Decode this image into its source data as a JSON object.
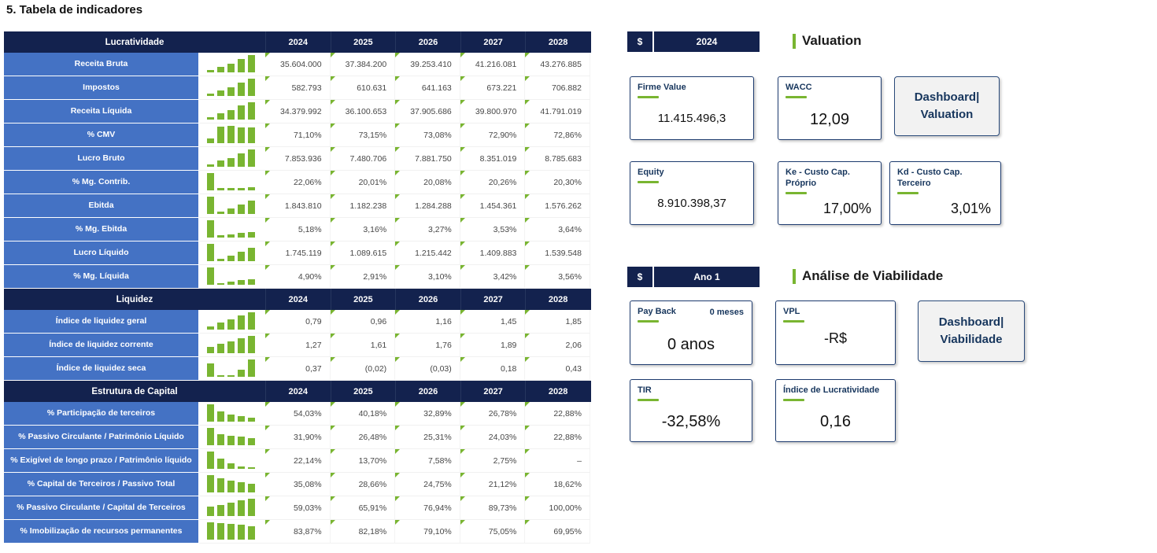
{
  "page_title": "5. Tabela de indicadores",
  "colors": {
    "accent_green": "#79b531",
    "navy": "#13224e",
    "label_blue": "#4472c4"
  },
  "table": {
    "sections": [
      {
        "title": "Lucratividade",
        "years": [
          "2024",
          "2025",
          "2026",
          "2027",
          "2028"
        ],
        "rows": [
          {
            "label": "Receita Bruta",
            "values": [
              "35.604.000",
              "37.384.200",
              "39.253.410",
              "41.216.081",
              "43.276.885"
            ],
            "spark": [
              0.12,
              0.3,
              0.5,
              0.75,
              1
            ]
          },
          {
            "label": "Impostos",
            "values": [
              "582.793",
              "610.631",
              "641.163",
              "673.221",
              "706.882"
            ],
            "spark": [
              0.12,
              0.3,
              0.5,
              0.75,
              1
            ]
          },
          {
            "label": "Receita Líquida",
            "values": [
              "34.379.992",
              "36.100.653",
              "37.905.686",
              "39.800.970",
              "41.791.019"
            ],
            "spark": [
              0.12,
              0.35,
              0.55,
              0.8,
              1
            ]
          },
          {
            "label": "% CMV",
            "values": [
              "71,10%",
              "73,15%",
              "73,08%",
              "72,90%",
              "72,86%"
            ],
            "spark": [
              0.25,
              0.95,
              1,
              0.92,
              0.9
            ]
          },
          {
            "label": "Lucro Bruto",
            "values": [
              "7.853.936",
              "7.480.706",
              "7.881.750",
              "8.351.019",
              "8.785.683"
            ],
            "spark": [
              0.15,
              0.35,
              0.5,
              0.75,
              1
            ]
          },
          {
            "label": "% Mg. Contrib.",
            "values": [
              "22,06%",
              "20,01%",
              "20,08%",
              "20,26%",
              "20,30%"
            ],
            "spark": [
              1,
              0.12,
              0.12,
              0.15,
              0.18
            ]
          },
          {
            "label": "Ebitda",
            "values": [
              "1.843.810",
              "1.182.238",
              "1.284.288",
              "1.454.361",
              "1.576.262"
            ],
            "spark": [
              1,
              0.12,
              0.3,
              0.55,
              0.75
            ]
          },
          {
            "label": "% Mg. Ebitda",
            "values": [
              "5,18%",
              "3,16%",
              "3,27%",
              "3,53%",
              "3,64%"
            ],
            "spark": [
              1,
              0.12,
              0.18,
              0.26,
              0.32
            ]
          },
          {
            "label": "Lucro Líquido",
            "values": [
              "1.745.119",
              "1.089.615",
              "1.215.442",
              "1.409.883",
              "1.539.548"
            ],
            "spark": [
              1,
              0.12,
              0.3,
              0.55,
              0.75
            ]
          },
          {
            "label": "% Mg. Líquida",
            "values": [
              "4,90%",
              "2,91%",
              "3,10%",
              "3,42%",
              "3,56%"
            ],
            "spark": [
              1,
              0.1,
              0.16,
              0.26,
              0.32
            ]
          }
        ]
      },
      {
        "title": "Liquidez",
        "years": [
          "2024",
          "2025",
          "2026",
          "2027",
          "2028"
        ],
        "rows": [
          {
            "label": "Índice de liquidez geral",
            "values": [
              "0,79",
              "0,96",
              "1,16",
              "1,45",
              "1,85"
            ],
            "spark": [
              0.2,
              0.4,
              0.6,
              0.8,
              1
            ]
          },
          {
            "label": "Índice de liquidez corrente",
            "values": [
              "1,27",
              "1,61",
              "1,76",
              "1,89",
              "2,06"
            ],
            "spark": [
              0.35,
              0.55,
              0.7,
              0.85,
              1
            ]
          },
          {
            "label": "Índice de liquidez seca",
            "values": [
              "0,37",
              "(0,02)",
              "(0,03)",
              "0,18",
              "0,43"
            ],
            "spark": [
              0.75,
              0.05,
              0.05,
              0.4,
              1
            ]
          }
        ]
      },
      {
        "title": "Estrutura de Capital",
        "years": [
          "2024",
          "2025",
          "2026",
          "2027",
          "2028"
        ],
        "rows": [
          {
            "label": "% Participação de terceiros",
            "values": [
              "54,03%",
              "40,18%",
              "32,89%",
              "26,78%",
              "22,88%"
            ],
            "spark": [
              1,
              0.6,
              0.42,
              0.32,
              0.24
            ]
          },
          {
            "label": "% Passivo Circulante / Patrimônio Líquido",
            "values": [
              "31,90%",
              "26,48%",
              "25,31%",
              "24,03%",
              "22,88%"
            ],
            "spark": [
              1,
              0.65,
              0.55,
              0.48,
              0.42
            ]
          },
          {
            "label": "% Exigível de longo prazo / Patrimônio líquido",
            "values": [
              "22,14%",
              "13,70%",
              "7,58%",
              "2,75%",
              "–"
            ],
            "spark": [
              1,
              0.6,
              0.34,
              0.12,
              0.03
            ]
          },
          {
            "label": "% Capital de Terceiros / Passivo Total",
            "values": [
              "35,08%",
              "28,66%",
              "24,75%",
              "21,12%",
              "18,62%"
            ],
            "spark": [
              1,
              0.8,
              0.68,
              0.58,
              0.5
            ]
          },
          {
            "label": "% Passivo Circulante / Capital de Terceiros",
            "values": [
              "59,03%",
              "65,91%",
              "76,94%",
              "89,73%",
              "100,00%"
            ],
            "spark": [
              0.55,
              0.65,
              0.76,
              0.9,
              1
            ]
          },
          {
            "label": "% Imobilização de recursos permanentes",
            "values": [
              "83,87%",
              "82,18%",
              "79,10%",
              "75,05%",
              "69,95%"
            ],
            "spark": [
              1,
              0.95,
              0.9,
              0.85,
              0.78
            ]
          }
        ]
      }
    ]
  },
  "valuation": {
    "period_bar": {
      "symbol": "$",
      "period": "2024"
    },
    "title": "Valuation",
    "cards": {
      "firme_value": {
        "label": "Firme Value",
        "value": "11.415.496,3"
      },
      "wacc": {
        "label": "WACC",
        "value": "12,09"
      },
      "equity": {
        "label": "Equity",
        "value": "8.910.398,37"
      },
      "ke": {
        "label": "Ke - Custo Cap.\nPróprio",
        "value": "17,00%"
      },
      "kd": {
        "label": "Kd - Custo Cap.\nTerceiro",
        "value": "3,01%"
      }
    },
    "button": "Dashboard|\nValuation"
  },
  "viability": {
    "period_bar": {
      "symbol": "$",
      "period": "Ano 1"
    },
    "title": "Análise de Viabilidade",
    "cards": {
      "payback": {
        "label": "Pay Back",
        "note": "0 meses",
        "value": "0 anos"
      },
      "vpl": {
        "label": "VPL",
        "value": "-R$"
      },
      "tir": {
        "label": "TIR",
        "value": "-32,58%"
      },
      "indice_lucratividade": {
        "label": "Índice de Lucratividade",
        "value": "0,16"
      }
    },
    "button": "Dashboard|\nViabilidade"
  }
}
